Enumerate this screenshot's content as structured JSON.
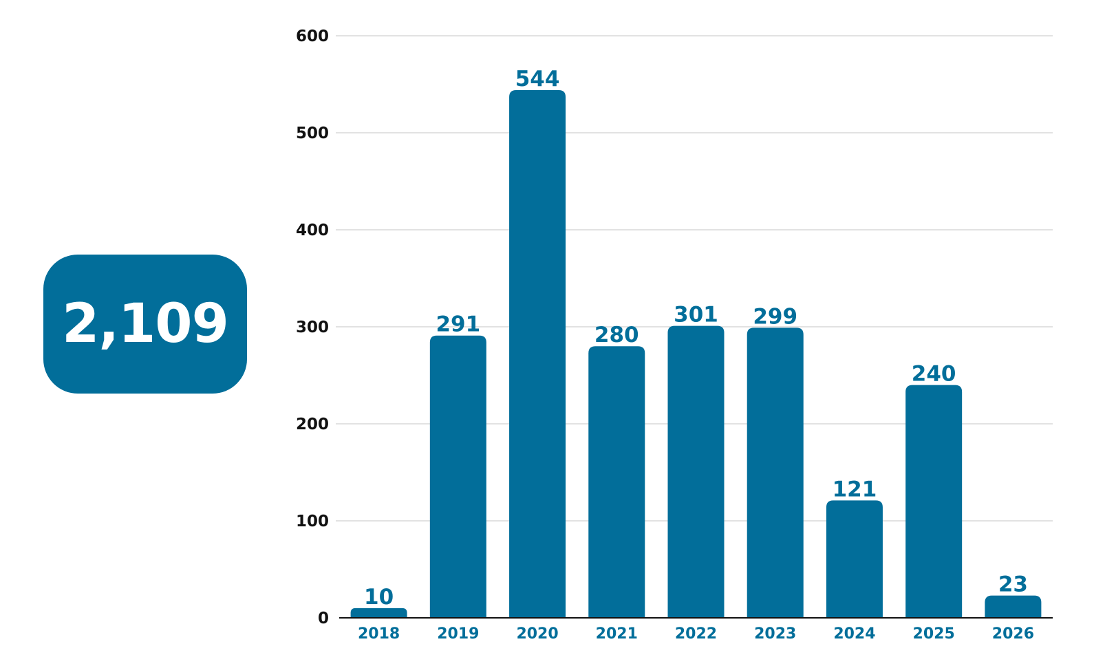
{
  "total": {
    "value": "2,109"
  },
  "colors": {
    "bar": "#026e9a",
    "label": "#026e9a",
    "tick": "#111111",
    "grid": "#d9d9d9",
    "axis": "#111111",
    "badge_text": "#ffffff"
  },
  "chart_data": {
    "type": "bar",
    "title": "",
    "xlabel": "",
    "ylabel": "",
    "categories": [
      "2018",
      "2019",
      "2020",
      "2021",
      "2022",
      "2023",
      "2024",
      "2025",
      "2026"
    ],
    "values": [
      10,
      291,
      544,
      280,
      301,
      299,
      121,
      240,
      23
    ],
    "data_labels": [
      "10",
      "291",
      "544",
      "280",
      "301",
      "299",
      "121",
      "240",
      "23"
    ],
    "ylim": [
      0,
      600
    ],
    "yticks": [
      0,
      100,
      200,
      300,
      400,
      500,
      600
    ],
    "grid": true,
    "legend": "none"
  }
}
